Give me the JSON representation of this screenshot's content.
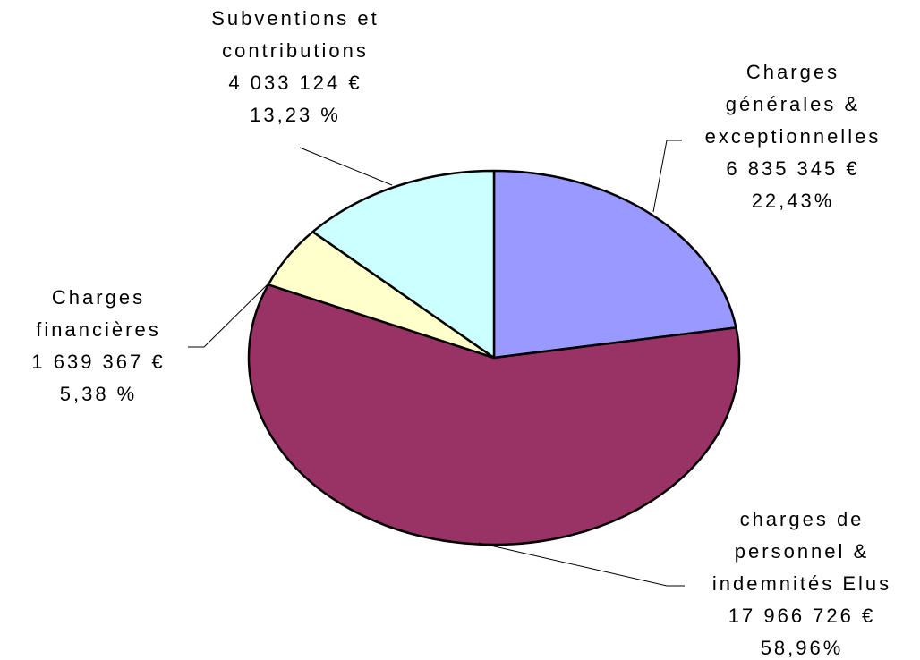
{
  "chart_data": {
    "type": "pie",
    "categories": [
      [
        "Charges",
        "générales &",
        "exceptionnelles"
      ],
      [
        "charges de",
        "personnel &",
        "indemnités Elus"
      ],
      [
        "Charges",
        "financières"
      ],
      [
        "Subventions et",
        "contributions"
      ]
    ],
    "values": [
      6835345,
      17966726,
      1639367,
      4033124
    ],
    "value_labels": [
      "6 835 345 €",
      "17 966 726 €",
      "1 639 367 €",
      "4 033 124 €"
    ],
    "percent_labels": [
      "22,43%",
      "58,96%",
      "5,38 %",
      "13,23 %"
    ],
    "colors": [
      "#9999ff",
      "#993366",
      "#ffffcc",
      "#ccffff"
    ]
  }
}
